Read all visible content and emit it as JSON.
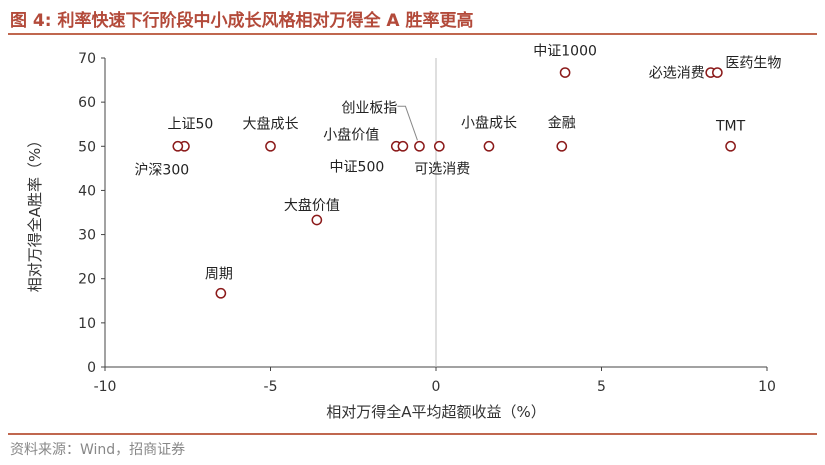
{
  "header": {
    "title": "图 4:  利率快速下行阶段中小成长风格相对万得全 A 胜率更高"
  },
  "footer": {
    "source": "资料来源：Wind，招商证券"
  },
  "colors": {
    "accent": "#b34a3a",
    "marker": "#8b1a1a",
    "zero_line": "#bfbfbf"
  },
  "chart_data": {
    "type": "scatter",
    "title": "利率快速下行阶段中小成长风格相对万得全 A 胜率更高",
    "xlabel": "相对万得全A平均超额收益（%）",
    "ylabel": "相对万得全A胜率（%）",
    "xlim": [
      -10,
      10
    ],
    "ylim": [
      0,
      70
    ],
    "xticks": [
      -10,
      -5,
      0,
      5,
      10
    ],
    "yticks": [
      0,
      10,
      20,
      30,
      40,
      50,
      60,
      70
    ],
    "grid": false,
    "points": [
      {
        "name": "上证50",
        "x": -7.6,
        "y": 50
      },
      {
        "name": "沪深300",
        "x": -7.8,
        "y": 50
      },
      {
        "name": "大盘成长",
        "x": -5.0,
        "y": 50
      },
      {
        "name": "大盘价值",
        "x": -3.6,
        "y": 33.3
      },
      {
        "name": "周期",
        "x": -6.5,
        "y": 16.7
      },
      {
        "name": "小盘价值",
        "x": -1.2,
        "y": 50
      },
      {
        "name": "中证500",
        "x": -1.0,
        "y": 50
      },
      {
        "name": "创业板指",
        "x": -0.5,
        "y": 50
      },
      {
        "name": "可选消费",
        "x": 0.1,
        "y": 50
      },
      {
        "name": "小盘成长",
        "x": 1.6,
        "y": 50
      },
      {
        "name": "金融",
        "x": 3.8,
        "y": 50
      },
      {
        "name": "中证1000",
        "x": 3.9,
        "y": 66.7
      },
      {
        "name": "必选消费",
        "x": 8.3,
        "y": 66.7
      },
      {
        "name": "医药生物",
        "x": 8.5,
        "y": 66.7
      },
      {
        "name": "TMT",
        "x": 8.9,
        "y": 50
      }
    ]
  }
}
